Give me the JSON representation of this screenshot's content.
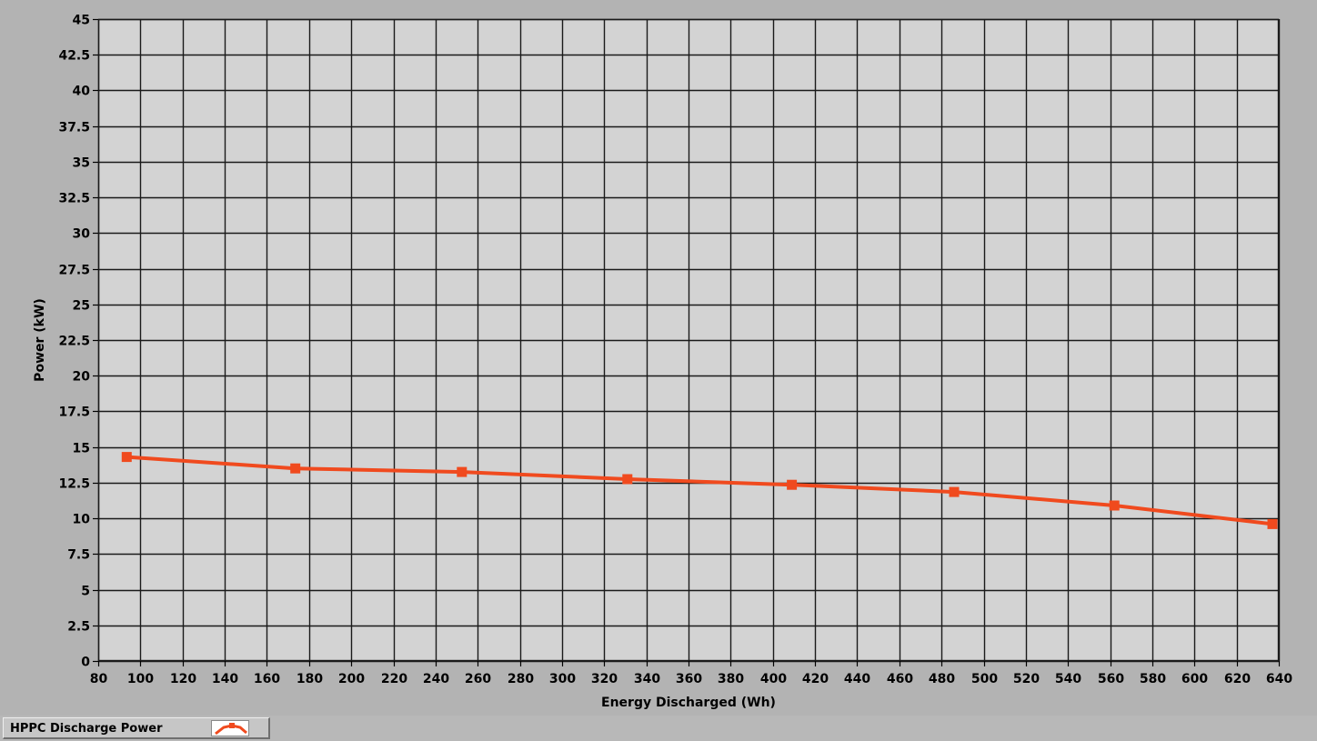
{
  "chart_data": {
    "type": "line",
    "xlabel": "Energy Discharged (Wh)",
    "ylabel": "Power (kW)",
    "xlim": [
      80,
      640
    ],
    "ylim": [
      0,
      45
    ],
    "x_ticks": [
      80,
      100,
      120,
      140,
      160,
      180,
      200,
      220,
      240,
      260,
      280,
      300,
      320,
      340,
      360,
      380,
      400,
      420,
      440,
      460,
      480,
      500,
      520,
      540,
      560,
      580,
      600,
      620,
      640
    ],
    "y_ticks": [
      0,
      2.5,
      5,
      7.5,
      10,
      12.5,
      15,
      17.5,
      20,
      22.5,
      25,
      27.5,
      30,
      32.5,
      35,
      37.5,
      40,
      42.5,
      45
    ],
    "grid": true,
    "legend_position": "bottom-left",
    "series": [
      {
        "name": "HPPC Discharge Power",
        "color": "#f04a1e",
        "marker": "square",
        "x": [
          93.5,
          173.5,
          252.5,
          331,
          409,
          486,
          562,
          637
        ],
        "y": [
          14.3,
          13.5,
          13.25,
          12.75,
          12.35,
          11.85,
          10.9,
          9.6
        ]
      }
    ]
  },
  "colors": {
    "plot_background": "#d3d3d3",
    "frame_background": "#b3b3b3",
    "grid": "#1a1a1a",
    "series": "#f04a1e"
  },
  "legend": {
    "label": "HPPC Discharge Power",
    "swatch_icon": "line-with-marker-icon"
  }
}
